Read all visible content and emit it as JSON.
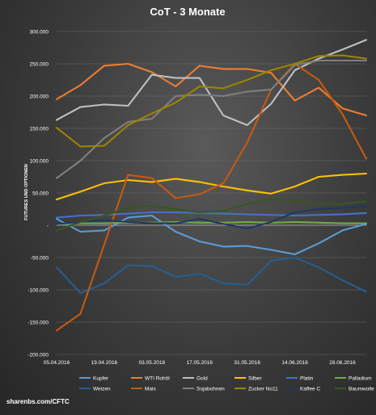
{
  "chart_data": {
    "type": "line",
    "title": "CoT - 3 Monate",
    "ylabel": "FUTURES UND OPTIONEN",
    "ylim": [
      -200000,
      300000
    ],
    "ytick_step": 50000,
    "ytick_labels": [
      "300.000",
      "250.000",
      "200.000",
      "150.000",
      "100.000",
      "50.000",
      "-",
      "-50.000",
      "-100.000",
      "-150.000",
      "-200.000"
    ],
    "x_tick_labels": [
      "05.04.2016",
      "19.04.2016",
      "03.05.2016",
      "17.05.2016",
      "31.05.2016",
      "14.06.2016",
      "28.06.2016"
    ],
    "x": [
      "05.04.2016",
      "12.04.2016",
      "19.04.2016",
      "26.04.2016",
      "03.05.2016",
      "10.05.2016",
      "17.05.2016",
      "24.05.2016",
      "31.05.2016",
      "07.06.2016",
      "14.06.2016",
      "21.06.2016",
      "28.06.2016",
      "05.07.2016"
    ],
    "grid": true,
    "legend_position": "bottom",
    "series": [
      {
        "name": "Kupfer",
        "color": "#5b9bd5",
        "values": [
          10000,
          -10000,
          -8000,
          12000,
          15000,
          -10000,
          -25000,
          -33000,
          -32000,
          -38000,
          -45000,
          -28000,
          -8000,
          2000
        ]
      },
      {
        "name": "WTI Rohöl",
        "color": "#ed7d31",
        "values": [
          195000,
          217000,
          247000,
          250000,
          237000,
          215000,
          247000,
          242000,
          242000,
          236000,
          193000,
          213000,
          181000,
          170000
        ]
      },
      {
        "name": "Gold",
        "color": "#bfbfbf",
        "values": [
          163000,
          183000,
          187000,
          185000,
          233000,
          228000,
          228000,
          170000,
          155000,
          188000,
          240000,
          258000,
          272000,
          287000
        ]
      },
      {
        "name": "Silber",
        "color": "#ffc000",
        "values": [
          40000,
          52000,
          65000,
          70000,
          67000,
          72000,
          67000,
          60000,
          54000,
          49000,
          60000,
          75000,
          78000,
          80000
        ]
      },
      {
        "name": "Platin",
        "color": "#4472c4",
        "values": [
          12000,
          15000,
          16000,
          18000,
          20000,
          20000,
          19000,
          18000,
          17000,
          16000,
          15000,
          16000,
          17000,
          19000
        ]
      },
      {
        "name": "Palladium",
        "color": "#70ad47",
        "values": [
          2000,
          3000,
          3000,
          4000,
          4000,
          5000,
          4000,
          4000,
          5000,
          4000,
          5000,
          4000,
          3000,
          3000
        ]
      },
      {
        "name": "Weizen",
        "color": "#255e91",
        "values": [
          -65000,
          -105000,
          -90000,
          -62000,
          -63000,
          -80000,
          -75000,
          -90000,
          -92000,
          -55000,
          -50000,
          -65000,
          -85000,
          -103000
        ]
      },
      {
        "name": "Mais",
        "color": "#c55a11",
        "values": [
          -163000,
          -137000,
          -30000,
          78000,
          73000,
          42000,
          48000,
          65000,
          128000,
          210000,
          250000,
          225000,
          172000,
          103000
        ]
      },
      {
        "name": "Sojabohnen",
        "color": "#7f7f7f",
        "values": [
          73000,
          100000,
          135000,
          160000,
          165000,
          200000,
          202000,
          200000,
          207000,
          210000,
          248000,
          255000,
          255000,
          255000
        ]
      },
      {
        "name": "Zucker No11",
        "color": "#9e8400",
        "values": [
          151000,
          122000,
          123000,
          155000,
          173000,
          190000,
          215000,
          212000,
          225000,
          240000,
          250000,
          262000,
          263000,
          258000
        ]
      },
      {
        "name": "Kaffee C",
        "color": "#1f3864",
        "values": [
          2000,
          5000,
          8000,
          5000,
          3000,
          3000,
          10000,
          2000,
          -5000,
          5000,
          20000,
          25000,
          27000,
          30000
        ]
      },
      {
        "name": "Baumwolle",
        "color": "#375623",
        "values": [
          -8000,
          5000,
          15000,
          27000,
          30000,
          25000,
          20000,
          22000,
          33000,
          40000,
          38000,
          33000,
          33000,
          37000
        ]
      }
    ]
  },
  "footer": {
    "text": "sharenbs.com/CFTC"
  }
}
